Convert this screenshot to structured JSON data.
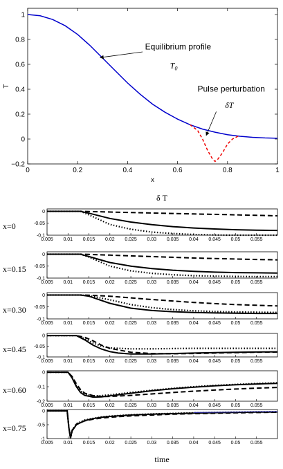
{
  "chart_data": [
    {
      "type": "line",
      "xlabel": "x",
      "ylabel": "T",
      "xlim": [
        0,
        1
      ],
      "ylim": [
        -0.2,
        1.05
      ],
      "xticks": [
        "0",
        "0.2",
        "0.4",
        "0.6",
        "0.8",
        "1"
      ],
      "yticks": [
        "−0.2",
        "0",
        "0.2",
        "0.4",
        "0.6",
        "0.8",
        "1"
      ],
      "ytick_values": [
        -0.2,
        0,
        0.2,
        0.4,
        0.6,
        0.8,
        1
      ],
      "xtick_values": [
        0,
        0.2,
        0.4,
        0.6,
        0.8,
        1
      ],
      "series": [
        {
          "name": "Equilibrium profile",
          "color": "#0000cc",
          "style": "solid",
          "x": [
            0,
            0.05,
            0.1,
            0.15,
            0.2,
            0.25,
            0.3,
            0.35,
            0.4,
            0.45,
            0.5,
            0.55,
            0.6,
            0.65,
            0.7,
            0.75,
            0.8,
            0.85,
            0.9,
            0.95,
            1.0
          ],
          "y": [
            1.0,
            0.99,
            0.96,
            0.91,
            0.84,
            0.75,
            0.65,
            0.55,
            0.45,
            0.36,
            0.28,
            0.215,
            0.16,
            0.115,
            0.08,
            0.055,
            0.035,
            0.022,
            0.014,
            0.009,
            0.006
          ]
        },
        {
          "name": "Pulse perturbation",
          "color": "#ee0000",
          "style": "dashed",
          "x": [
            0.65,
            0.68,
            0.7,
            0.72,
            0.74,
            0.75,
            0.76,
            0.78,
            0.8,
            0.82,
            0.85
          ],
          "y": [
            0.115,
            0.07,
            0.0,
            -0.09,
            -0.16,
            -0.18,
            -0.165,
            -0.11,
            -0.04,
            0.0,
            0.03
          ]
        }
      ],
      "annotations": [
        {
          "text": "Equilibrium profile",
          "x": 0.47,
          "y": 0.72
        },
        {
          "text": "T",
          "sub": "0",
          "x": 0.57,
          "y": 0.57
        },
        {
          "text": "Pulse perturbation",
          "x": 0.68,
          "y": 0.38
        },
        {
          "text": "δT",
          "x": 0.79,
          "y": 0.25
        }
      ]
    },
    {
      "type": "line",
      "title": "δ T",
      "xlabel": "time",
      "xlim": [
        0.005,
        0.06
      ],
      "xticks": [
        "0.005",
        "0.01",
        "0.015",
        "0.02",
        "0.025",
        "0.03",
        "0.035",
        "0.04",
        "0.045",
        "0.05",
        "0.055"
      ],
      "xtick_values": [
        0.005,
        0.01,
        0.015,
        0.02,
        0.025,
        0.03,
        0.035,
        0.04,
        0.045,
        0.05,
        0.055
      ],
      "panels": [
        {
          "label": "x=0",
          "ylim": [
            -0.1,
            0.01
          ],
          "yticks": [
            "0",
            "-0.05",
            "-0.1"
          ],
          "ytick_values": [
            0,
            -0.05,
            -0.1
          ],
          "series": [
            {
              "style": "solid",
              "x": [
                0.005,
                0.013,
                0.015,
                0.02,
                0.025,
                0.03,
                0.035,
                0.04,
                0.045,
                0.05,
                0.055,
                0.06
              ],
              "y": [
                0,
                0,
                -0.008,
                -0.03,
                -0.045,
                -0.056,
                -0.064,
                -0.07,
                -0.074,
                -0.077,
                -0.079,
                -0.08
              ]
            },
            {
              "style": "dashed",
              "x": [
                0.005,
                0.013,
                0.015,
                0.02,
                0.025,
                0.03,
                0.035,
                0.04,
                0.045,
                0.05,
                0.055,
                0.06
              ],
              "y": [
                0,
                0,
                -0.001,
                -0.003,
                -0.005,
                -0.007,
                -0.009,
                -0.011,
                -0.013,
                -0.015,
                -0.017,
                -0.019
              ]
            },
            {
              "style": "dotted",
              "x": [
                0.005,
                0.013,
                0.015,
                0.02,
                0.025,
                0.03,
                0.035,
                0.04,
                0.045,
                0.05,
                0.055,
                0.06
              ],
              "y": [
                0,
                0,
                -0.015,
                -0.055,
                -0.075,
                -0.087,
                -0.093,
                -0.097,
                -0.099,
                -0.1,
                -0.1,
                -0.1
              ]
            }
          ]
        },
        {
          "label": "x=0.15",
          "ylim": [
            -0.1,
            0.01
          ],
          "yticks": [
            "0",
            "-0.05",
            "-0.1"
          ],
          "ytick_values": [
            0,
            -0.05,
            -0.1
          ],
          "series": [
            {
              "style": "solid",
              "x": [
                0.005,
                0.013,
                0.015,
                0.02,
                0.025,
                0.03,
                0.035,
                0.04,
                0.045,
                0.05,
                0.055,
                0.06
              ],
              "y": [
                0,
                0,
                -0.01,
                -0.035,
                -0.05,
                -0.06,
                -0.067,
                -0.072,
                -0.075,
                -0.077,
                -0.078,
                -0.079
              ]
            },
            {
              "style": "dashed",
              "x": [
                0.005,
                0.013,
                0.015,
                0.02,
                0.025,
                0.03,
                0.035,
                0.04,
                0.045,
                0.05,
                0.055,
                0.06
              ],
              "y": [
                0,
                0,
                -0.001,
                -0.004,
                -0.007,
                -0.01,
                -0.013,
                -0.016,
                -0.018,
                -0.02,
                -0.022,
                -0.024
              ]
            },
            {
              "style": "dotted",
              "x": [
                0.005,
                0.013,
                0.015,
                0.02,
                0.025,
                0.03,
                0.035,
                0.04,
                0.045,
                0.05,
                0.055,
                0.06
              ],
              "y": [
                0,
                0,
                -0.012,
                -0.05,
                -0.07,
                -0.08,
                -0.086,
                -0.09,
                -0.092,
                -0.093,
                -0.094,
                -0.094
              ]
            }
          ]
        },
        {
          "label": "x=0.30",
          "ylim": [
            -0.1,
            0.01
          ],
          "yticks": [
            "0",
            "-0.05",
            "-0.1"
          ],
          "ytick_values": [
            0,
            -0.05,
            -0.1
          ],
          "series": [
            {
              "style": "solid",
              "x": [
                0.005,
                0.013,
                0.015,
                0.02,
                0.025,
                0.03,
                0.035,
                0.04,
                0.045,
                0.05,
                0.055,
                0.06
              ],
              "y": [
                0,
                0,
                -0.005,
                -0.035,
                -0.055,
                -0.065,
                -0.07,
                -0.073,
                -0.075,
                -0.076,
                -0.077,
                -0.077
              ]
            },
            {
              "style": "dashed",
              "x": [
                0.005,
                0.013,
                0.015,
                0.02,
                0.025,
                0.03,
                0.035,
                0.04,
                0.045,
                0.05,
                0.055,
                0.06
              ],
              "y": [
                0,
                0,
                -0.001,
                -0.005,
                -0.012,
                -0.019,
                -0.025,
                -0.031,
                -0.036,
                -0.04,
                -0.043,
                -0.046
              ]
            },
            {
              "style": "dotted",
              "x": [
                0.005,
                0.013,
                0.015,
                0.02,
                0.025,
                0.03,
                0.035,
                0.04,
                0.045,
                0.05,
                0.055,
                0.06
              ],
              "y": [
                0,
                0,
                -0.003,
                -0.02,
                -0.04,
                -0.053,
                -0.061,
                -0.066,
                -0.069,
                -0.071,
                -0.072,
                -0.073
              ]
            }
          ]
        },
        {
          "label": "x=0.45",
          "ylim": [
            -0.1,
            0.01
          ],
          "yticks": [
            "0",
            "-0.05",
            "-0.1"
          ],
          "ytick_values": [
            0,
            -0.05,
            -0.1
          ],
          "series": [
            {
              "style": "solid",
              "x": [
                0.005,
                0.012,
                0.014,
                0.016,
                0.018,
                0.02,
                0.022,
                0.025,
                0.03,
                0.035,
                0.04,
                0.045,
                0.05,
                0.055,
                0.06
              ],
              "y": [
                0,
                0,
                -0.02,
                -0.045,
                -0.063,
                -0.075,
                -0.082,
                -0.086,
                -0.086,
                -0.084,
                -0.082,
                -0.08,
                -0.078,
                -0.077,
                -0.076
              ]
            },
            {
              "style": "dashed",
              "x": [
                0.005,
                0.012,
                0.014,
                0.016,
                0.018,
                0.02,
                0.025,
                0.03,
                0.035,
                0.04,
                0.045,
                0.05,
                0.055,
                0.06
              ],
              "y": [
                0,
                0,
                -0.008,
                -0.025,
                -0.045,
                -0.06,
                -0.078,
                -0.084,
                -0.085,
                -0.084,
                -0.082,
                -0.08,
                -0.078,
                -0.077
              ]
            },
            {
              "style": "dotted",
              "x": [
                0.005,
                0.012,
                0.014,
                0.016,
                0.018,
                0.02,
                0.025,
                0.03,
                0.035,
                0.04,
                0.045,
                0.05,
                0.055,
                0.06
              ],
              "y": [
                0,
                0,
                -0.015,
                -0.035,
                -0.05,
                -0.058,
                -0.062,
                -0.062,
                -0.061,
                -0.06,
                -0.06,
                -0.06,
                -0.06,
                -0.06
              ]
            }
          ]
        },
        {
          "label": "x=0.60",
          "ylim": [
            -0.2,
            0.01
          ],
          "yticks": [
            "0",
            "-0.1",
            "-0.2"
          ],
          "ytick_values": [
            0,
            -0.1,
            -0.2
          ],
          "series": [
            {
              "style": "solid",
              "x": [
                0.005,
                0.01,
                0.011,
                0.012,
                0.013,
                0.014,
                0.016,
                0.018,
                0.02,
                0.025,
                0.03,
                0.035,
                0.04,
                0.045,
                0.05,
                0.055,
                0.06
              ],
              "y": [
                0,
                0,
                -0.04,
                -0.1,
                -0.14,
                -0.16,
                -0.172,
                -0.17,
                -0.163,
                -0.145,
                -0.128,
                -0.114,
                -0.103,
                -0.094,
                -0.087,
                -0.081,
                -0.077
              ]
            },
            {
              "style": "dashed",
              "x": [
                0.005,
                0.01,
                0.011,
                0.012,
                0.013,
                0.014,
                0.016,
                0.018,
                0.02,
                0.025,
                0.03,
                0.035,
                0.04,
                0.045,
                0.05,
                0.055,
                0.06
              ],
              "y": [
                0,
                0,
                -0.03,
                -0.08,
                -0.12,
                -0.145,
                -0.162,
                -0.168,
                -0.167,
                -0.16,
                -0.15,
                -0.14,
                -0.131,
                -0.123,
                -0.116,
                -0.11,
                -0.105
              ]
            },
            {
              "style": "dotted",
              "x": [
                0.005,
                0.01,
                0.011,
                0.012,
                0.013,
                0.014,
                0.016,
                0.018,
                0.02,
                0.025,
                0.03,
                0.035,
                0.04,
                0.045,
                0.05,
                0.055,
                0.06
              ],
              "y": [
                0,
                0,
                -0.035,
                -0.09,
                -0.13,
                -0.15,
                -0.163,
                -0.162,
                -0.156,
                -0.14,
                -0.124,
                -0.111,
                -0.1,
                -0.091,
                -0.084,
                -0.078,
                -0.073
              ]
            }
          ]
        },
        {
          "label": "x=0.75",
          "ylim": [
            -1.0,
            0.05
          ],
          "yticks": [
            "0",
            "-0.5",
            "-1"
          ],
          "ytick_values": [
            0,
            -0.5,
            -1
          ],
          "series": [
            {
              "style": "solid",
              "x": [
                0.005,
                0.0098,
                0.0102,
                0.0106,
                0.011,
                0.012,
                0.014,
                0.016,
                0.018,
                0.02,
                0.025,
                0.03,
                0.035,
                0.04,
                0.045,
                0.05,
                0.055,
                0.06
              ],
              "y": [
                0,
                0,
                -0.6,
                -0.98,
                -0.72,
                -0.5,
                -0.35,
                -0.28,
                -0.23,
                -0.2,
                -0.15,
                -0.12,
                -0.1,
                -0.08,
                -0.065,
                -0.055,
                -0.045,
                -0.04
              ]
            },
            {
              "style": "dashed",
              "x": [
                0.005,
                0.0098,
                0.0102,
                0.0106,
                0.011,
                0.012,
                0.014,
                0.016,
                0.018,
                0.02,
                0.025,
                0.03,
                0.035,
                0.04,
                0.045,
                0.05,
                0.055,
                0.06
              ],
              "y": [
                0,
                0,
                -0.6,
                -0.98,
                -0.7,
                -0.48,
                -0.36,
                -0.3,
                -0.26,
                -0.23,
                -0.18,
                -0.15,
                -0.12,
                -0.1,
                -0.085,
                -0.07,
                -0.06,
                -0.05
              ]
            },
            {
              "style": "dotted",
              "x": [
                0.005,
                0.0098,
                0.0102,
                0.0106,
                0.011,
                0.012,
                0.014,
                0.016,
                0.018,
                0.02,
                0.025,
                0.03,
                0.035,
                0.04,
                0.045,
                0.05,
                0.055,
                0.06
              ],
              "y": [
                0,
                0,
                -0.6,
                -0.98,
                -0.7,
                -0.46,
                -0.33,
                -0.27,
                -0.22,
                -0.19,
                -0.14,
                -0.11,
                -0.09,
                -0.07,
                -0.055,
                -0.045,
                -0.035,
                -0.03
              ]
            },
            {
              "style": "solid-blue",
              "color": "#2a2a9a",
              "x": [
                0.04,
                0.045,
                0.05,
                0.055,
                0.06
              ],
              "y": [
                -0.06,
                -0.05,
                -0.04,
                -0.03,
                -0.025
              ]
            }
          ]
        }
      ]
    }
  ]
}
